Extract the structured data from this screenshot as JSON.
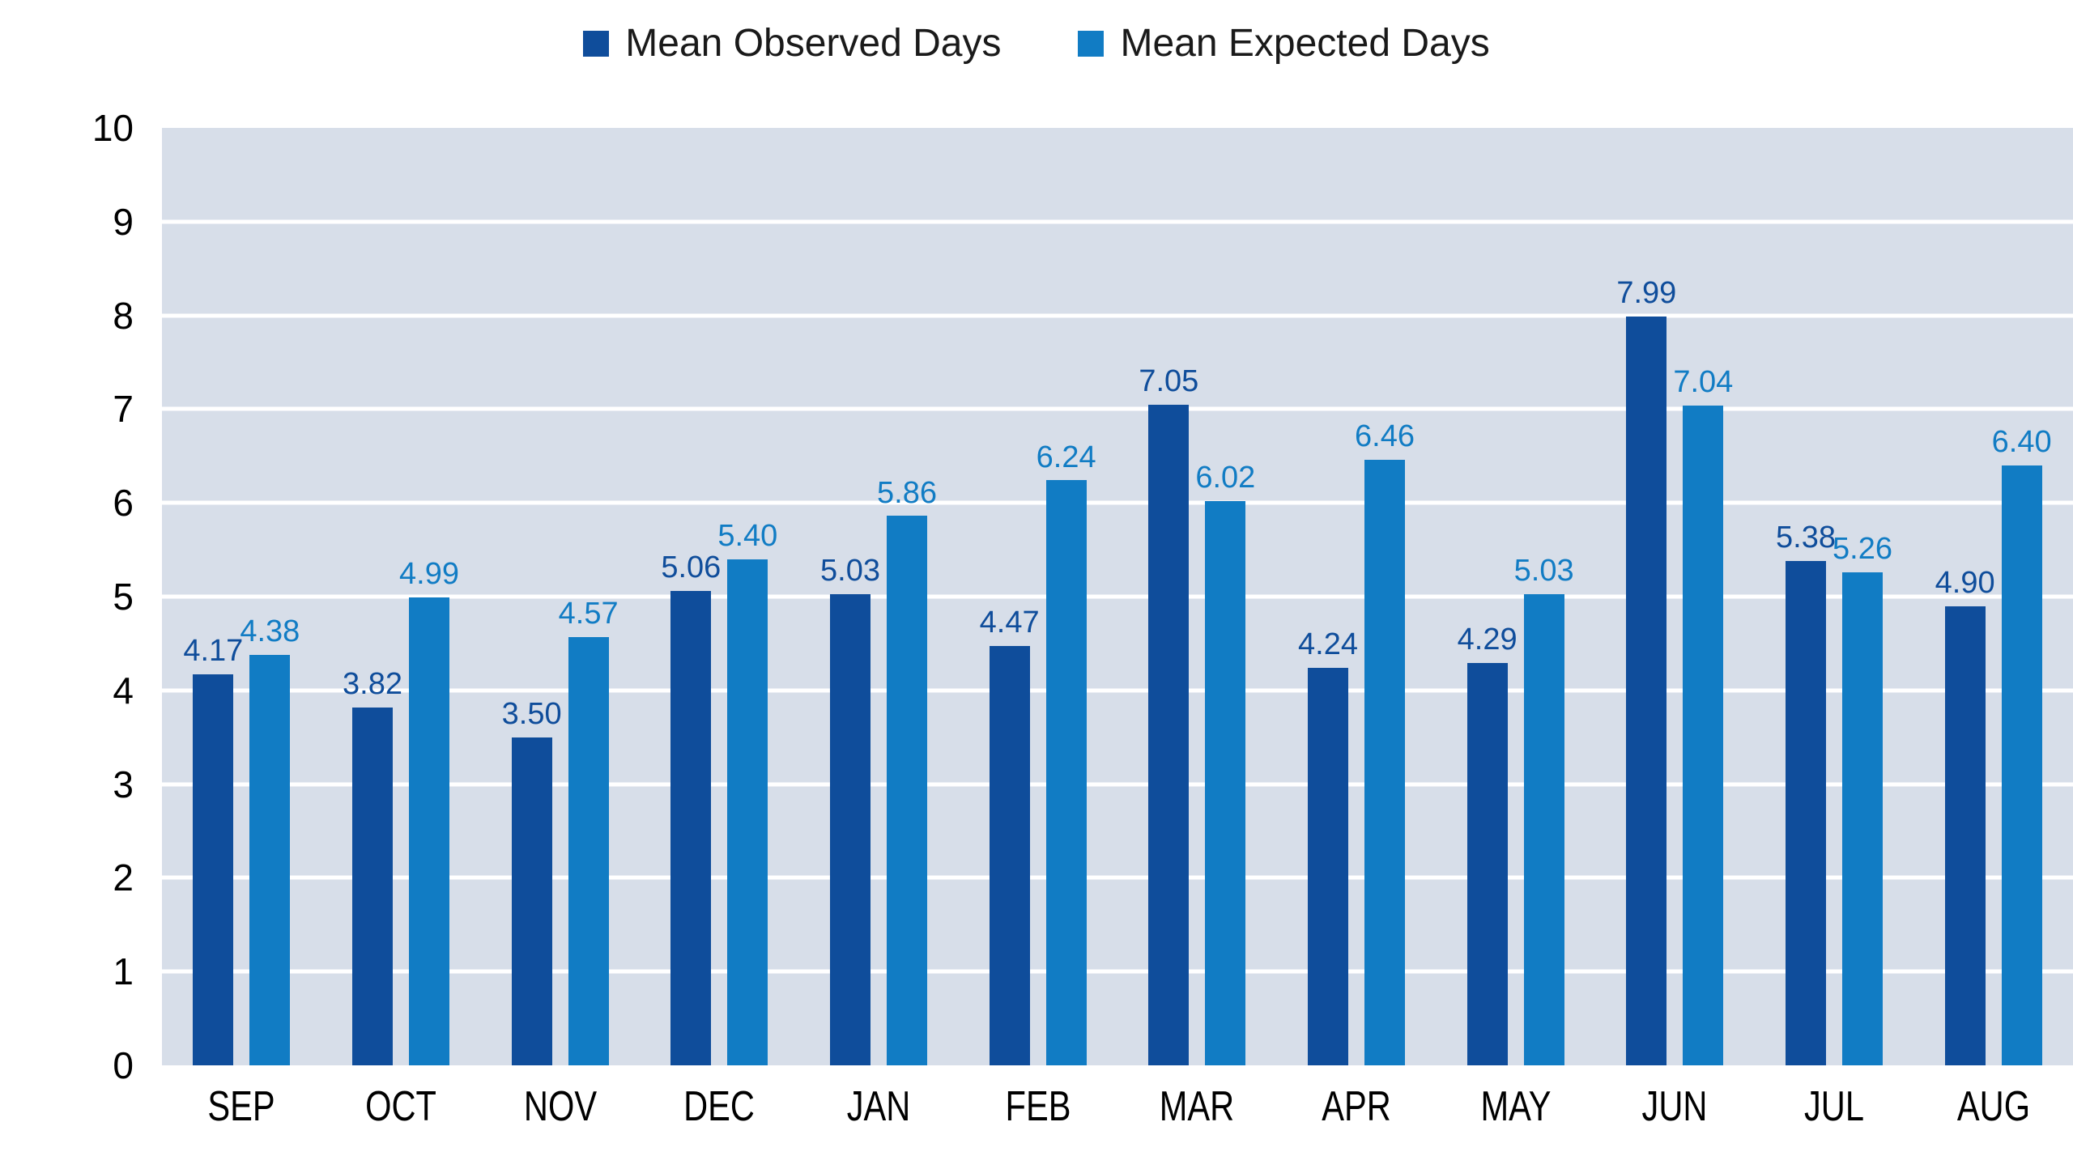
{
  "legend": {
    "items": [
      {
        "label": "Mean Observed Days",
        "color": "#0F4D9B"
      },
      {
        "label": "Mean Expected Days",
        "color": "#117CC4"
      }
    ]
  },
  "chart_data": {
    "type": "bar",
    "categories": [
      "SEP",
      "OCT",
      "NOV",
      "DEC",
      "JAN",
      "FEB",
      "MAR",
      "APR",
      "MAY",
      "JUN",
      "JUL",
      "AUG"
    ],
    "series": [
      {
        "name": "Mean Observed Days",
        "color": "#0F4D9B",
        "values": [
          4.17,
          3.82,
          3.5,
          5.06,
          5.03,
          4.47,
          7.05,
          4.24,
          4.29,
          7.99,
          5.38,
          4.9
        ]
      },
      {
        "name": "Mean Expected Days",
        "color": "#117CC4",
        "values": [
          4.38,
          4.99,
          4.57,
          5.4,
          5.86,
          6.24,
          6.02,
          6.46,
          5.03,
          7.04,
          5.26,
          6.4
        ]
      }
    ],
    "title": "",
    "xlabel": "",
    "ylabel": "",
    "ylim": [
      0,
      10
    ],
    "yticks": [
      0,
      1,
      2,
      3,
      4,
      5,
      6,
      7,
      8,
      9,
      10
    ],
    "grid": true,
    "grid_color": "#FFFFFF",
    "plot_background": "#D7DEE9",
    "legend_position": "top",
    "value_labels": true,
    "value_label_decimals": 2
  }
}
